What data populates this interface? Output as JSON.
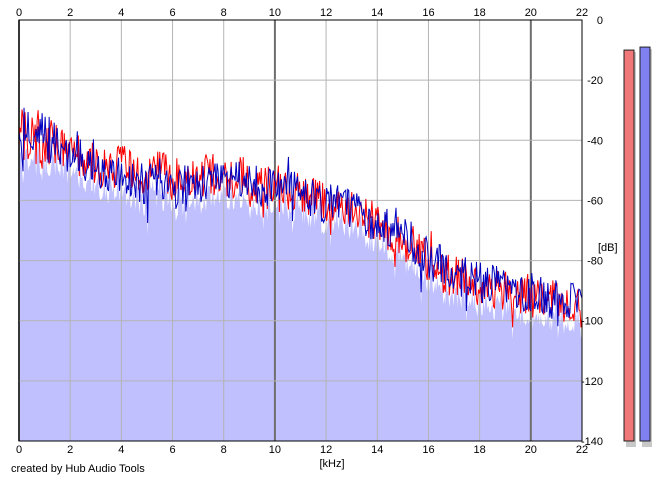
{
  "credit": "created by Hub Audio Tools",
  "colors": {
    "plot_background": "#ffffff",
    "fill": "#c0c0ff",
    "left_channel": "#ff0000",
    "right_channel": "#0000c0",
    "grid_minor": "#b4b4b4",
    "grid_major": "#6e6e6e",
    "left_meter": "#f07878",
    "right_meter": "#8080f0"
  },
  "meters": [
    {
      "name": "left-level-meter",
      "level_db": -10,
      "color_key": "left_meter"
    },
    {
      "name": "right-level-meter",
      "level_db": -9,
      "color_key": "right_meter"
    }
  ],
  "chart_data": {
    "type": "line",
    "title": "",
    "xlabel": "[kHz]",
    "ylabel": "[dB]",
    "xlim": [
      0,
      22
    ],
    "ylim": [
      -140,
      0
    ],
    "x_ticks": [
      0,
      2,
      4,
      6,
      8,
      10,
      12,
      14,
      16,
      18,
      20,
      22
    ],
    "y_ticks": [
      0,
      -20,
      -40,
      -60,
      -80,
      -100,
      -120,
      -140
    ],
    "x_tick_labels_top": [
      "0",
      "2",
      "4",
      "6",
      "8",
      "10",
      "12",
      "14",
      "16",
      "18",
      "20",
      "22"
    ],
    "x_tick_labels_bottom": [
      "0",
      "2",
      "4",
      "6",
      "8",
      "10",
      "12",
      "14",
      "16",
      "18",
      "20",
      "22"
    ],
    "y_tick_labels": [
      "0",
      "-20",
      "-40",
      "-60",
      "-80",
      "-100",
      "-120",
      "-140"
    ],
    "major_x_gridlines": [
      0,
      10,
      20
    ],
    "grid": true,
    "legend": "none",
    "series": [
      {
        "color_key": "left_channel",
        "x": [
          0,
          0.5,
          1,
          1.5,
          2,
          2.5,
          3,
          3.5,
          4,
          4.5,
          5,
          5.5,
          6,
          6.5,
          7,
          7.5,
          8,
          8.5,
          9,
          9.5,
          10,
          10.5,
          11,
          11.5,
          12,
          12.5,
          13,
          13.5,
          14,
          14.5,
          15,
          15.5,
          16,
          16.5,
          17,
          17.5,
          18,
          18.5,
          19,
          19.5,
          20,
          20.5,
          21,
          21.5,
          22
        ],
        "values": [
          -38,
          -40,
          -41,
          -43,
          -44,
          -46,
          -48,
          -50,
          -48,
          -51,
          -52,
          -50,
          -53,
          -51,
          -52,
          -51,
          -53,
          -52,
          -53,
          -55,
          -54,
          -56,
          -57,
          -59,
          -60,
          -61,
          -62,
          -65,
          -67,
          -70,
          -73,
          -76,
          -81,
          -84,
          -85,
          -87,
          -88,
          -89,
          -90,
          -91,
          -92,
          -93,
          -94,
          -94,
          -95
        ]
      },
      {
        "color_key": "right_channel",
        "x": [
          0,
          0.5,
          1,
          1.5,
          2,
          2.5,
          3,
          3.5,
          4,
          4.5,
          5,
          5.5,
          6,
          6.5,
          7,
          7.5,
          8,
          8.5,
          9,
          9.5,
          10,
          10.5,
          11,
          11.5,
          12,
          12.5,
          13,
          13.5,
          14,
          14.5,
          15,
          15.5,
          16,
          16.5,
          17,
          17.5,
          18,
          18.5,
          19,
          19.5,
          20,
          20.5,
          21,
          21.5,
          22
        ],
        "values": [
          -37,
          -39,
          -40,
          -42,
          -45,
          -47,
          -49,
          -51,
          -50,
          -53,
          -55,
          -53,
          -56,
          -54,
          -55,
          -54,
          -55,
          -54,
          -54,
          -56,
          -55,
          -57,
          -58,
          -60,
          -61,
          -62,
          -63,
          -65,
          -67,
          -69,
          -72,
          -75,
          -79,
          -82,
          -84,
          -86,
          -87,
          -88,
          -89,
          -90,
          -91,
          -92,
          -93,
          -93,
          -94
        ]
      }
    ]
  }
}
